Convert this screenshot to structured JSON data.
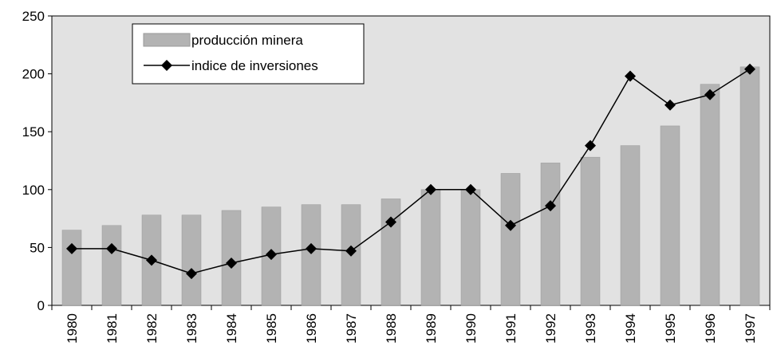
{
  "chart_data": {
    "type": "bar-line",
    "categories": [
      "1980",
      "1981",
      "1982",
      "1983",
      "1984",
      "1985",
      "1986",
      "1987",
      "1988",
      "1989",
      "1990",
      "1991",
      "1992",
      "1993",
      "1994",
      "1995",
      "1996",
      "1997"
    ],
    "series": [
      {
        "name": "producción minera",
        "type": "bar",
        "color": "#b3b3b3",
        "values": [
          65,
          69,
          78,
          78,
          82,
          85,
          87,
          87,
          92,
          100,
          100,
          114,
          123,
          128,
          138,
          155,
          191,
          206
        ]
      },
      {
        "name": "indice de inversiones",
        "type": "line",
        "color": "#000000",
        "values": [
          49,
          49,
          39,
          27.5,
          36.5,
          44,
          49,
          47,
          72,
          100,
          100,
          69,
          86,
          138,
          198,
          173,
          182,
          204
        ]
      }
    ],
    "ylim": [
      0,
      250
    ],
    "yticks": [
      0,
      50,
      100,
      150,
      200,
      250
    ],
    "plot_background": "#e2e2e2"
  }
}
